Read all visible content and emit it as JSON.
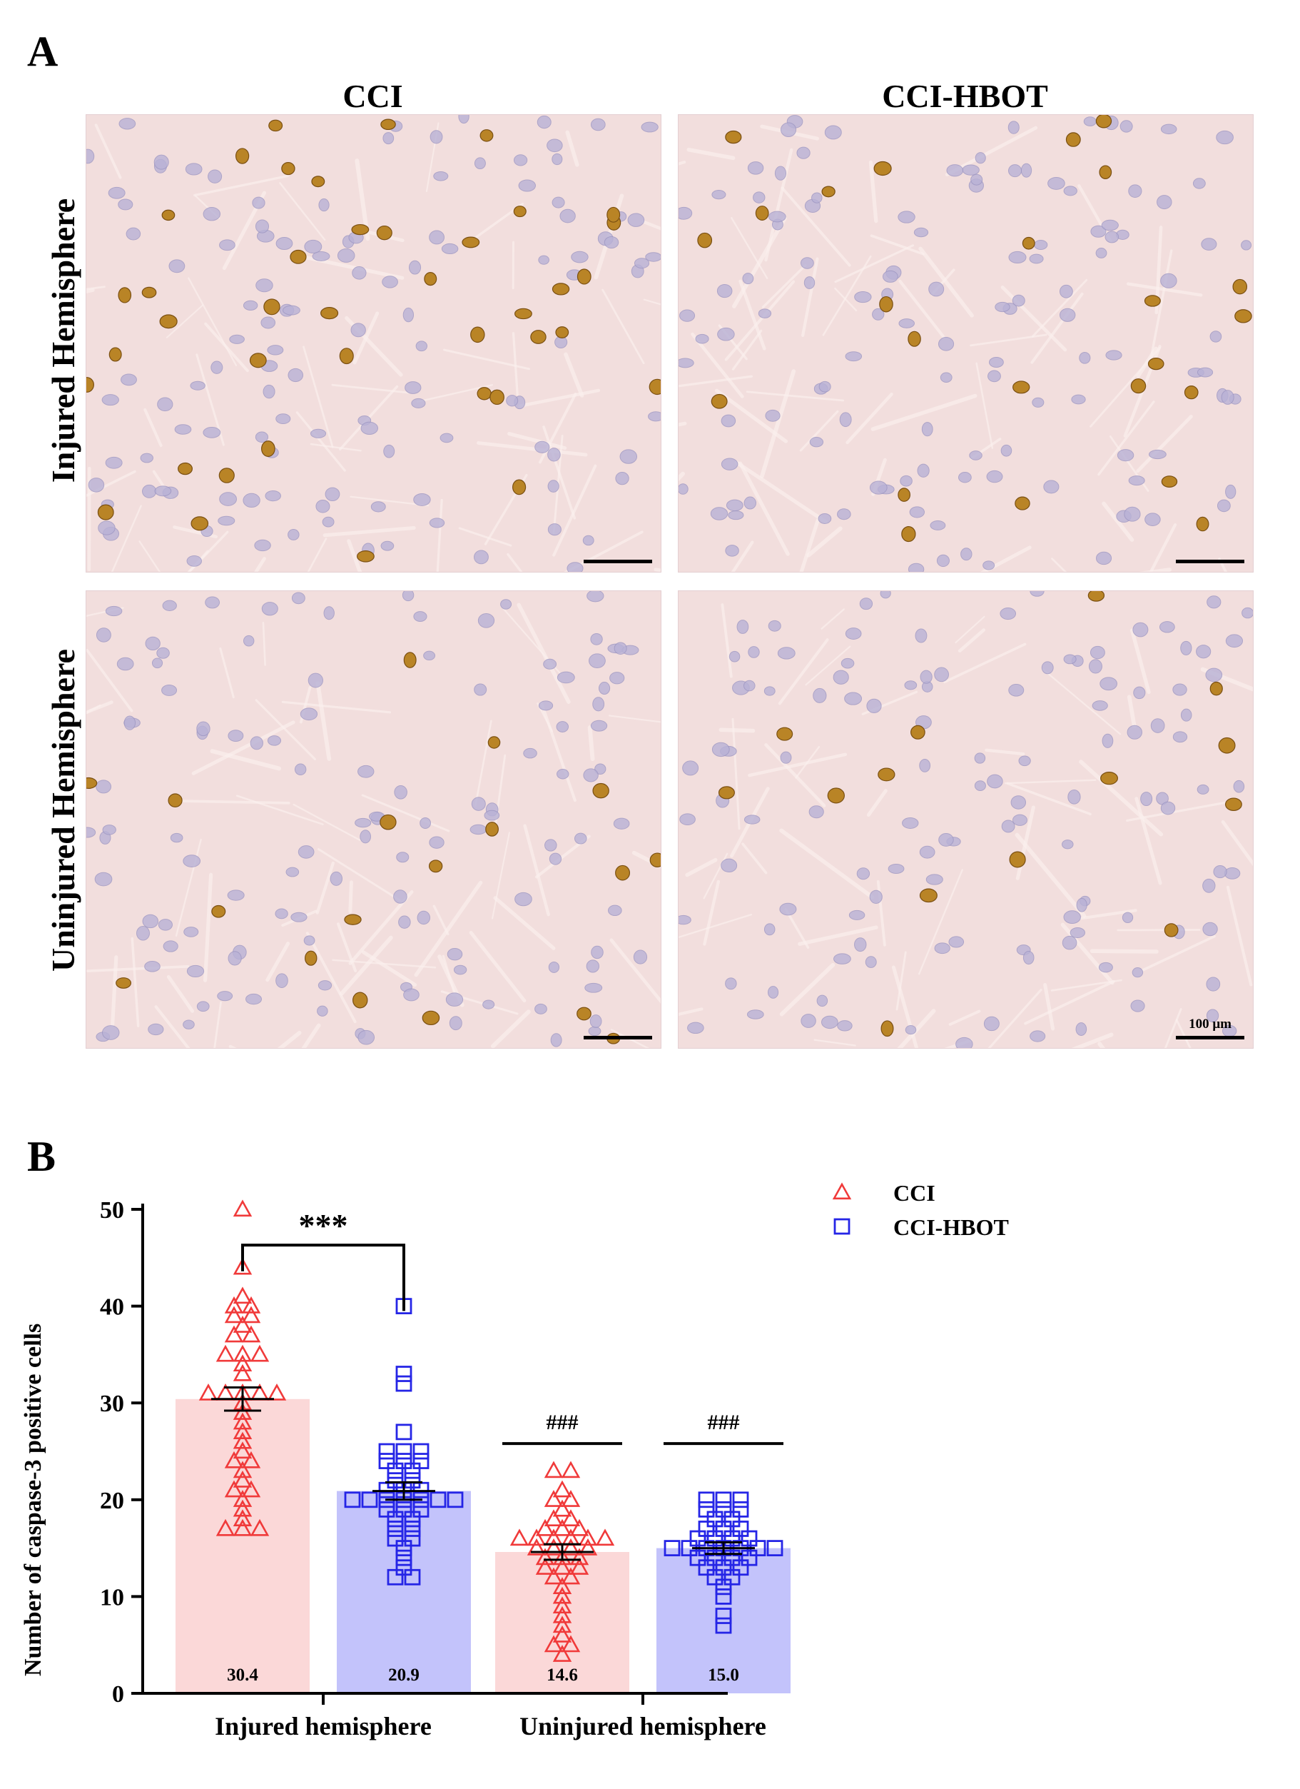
{
  "panel_a": {
    "letter": "A",
    "columns": [
      "CCI",
      "CCI-HBOT"
    ],
    "rows": [
      "Injured Hemisphere",
      "Uninjured Hemisphere"
    ],
    "scale_label": "100 μm"
  },
  "panel_b": {
    "letter": "B"
  },
  "colors": {
    "cci_point": "#f03a3a",
    "cci_bar": "#fbd8d8",
    "hbot_point": "#2525e6",
    "hbot_bar": "#c3c3fb",
    "tissue_bg": "#f2dedd",
    "cell_blue": "#b9b2d6",
    "cell_brown": "#b98426"
  },
  "chart_data": {
    "type": "bar",
    "categories": [
      "Injured hemisphere",
      "Uninjured hemisphere"
    ],
    "ylabel": "Number of caspase-3 positive cells",
    "ylim": [
      0,
      50
    ],
    "yticks": [
      0,
      10,
      20,
      30,
      40,
      50
    ],
    "legend_position": "top-right",
    "series": [
      {
        "name": "CCI",
        "marker": "triangle",
        "means": [
          30.4,
          14.6
        ],
        "mean_labels": [
          "30.4",
          "14.6"
        ],
        "sem": [
          1.2,
          0.8
        ],
        "points": [
          [
            50,
            44,
            41,
            40,
            40,
            39,
            39,
            38,
            37,
            37,
            35,
            35,
            35,
            34,
            33,
            31,
            31,
            31,
            31,
            31,
            30,
            29,
            28,
            27,
            26,
            25,
            24,
            24,
            23,
            22,
            21,
            21,
            20,
            19,
            18,
            17,
            17,
            17
          ],
          [
            23,
            23,
            21,
            20,
            20,
            19,
            18,
            18,
            17,
            17,
            17,
            16,
            16,
            16,
            16,
            16,
            16,
            15,
            15,
            15,
            15,
            14,
            14,
            14,
            13,
            13,
            13,
            12,
            12,
            11,
            10,
            9,
            8,
            7,
            6,
            5,
            5,
            4
          ]
        ]
      },
      {
        "name": "CCI-HBOT",
        "marker": "square",
        "means": [
          20.9,
          15.0
        ],
        "mean_labels": [
          "20.9",
          "15.0"
        ],
        "sem": [
          0.9,
          0.6
        ],
        "points": [
          [
            40,
            33,
            32,
            27,
            25,
            25,
            25,
            24,
            24,
            24,
            23,
            23,
            22,
            22,
            21,
            21,
            21,
            20,
            20,
            20,
            20,
            20,
            20,
            20,
            19,
            19,
            19,
            18,
            18,
            17,
            17,
            16,
            16,
            15,
            14,
            13,
            12,
            12
          ],
          [
            20,
            20,
            20,
            19,
            19,
            19,
            18,
            18,
            17,
            17,
            17,
            16,
            16,
            16,
            16,
            15,
            15,
            15,
            15,
            15,
            15,
            15,
            14,
            14,
            14,
            14,
            13,
            13,
            13,
            12,
            12,
            11,
            10,
            8,
            7
          ]
        ]
      }
    ],
    "annotations": [
      {
        "text": "***",
        "between": [
          "CCI",
          "CCI-HBOT"
        ],
        "category": "Injured hemisphere"
      },
      {
        "text": "###",
        "series": "CCI",
        "category": "Uninjured hemisphere"
      },
      {
        "text": "###",
        "series": "CCI-HBOT",
        "category": "Uninjured hemisphere"
      }
    ]
  }
}
